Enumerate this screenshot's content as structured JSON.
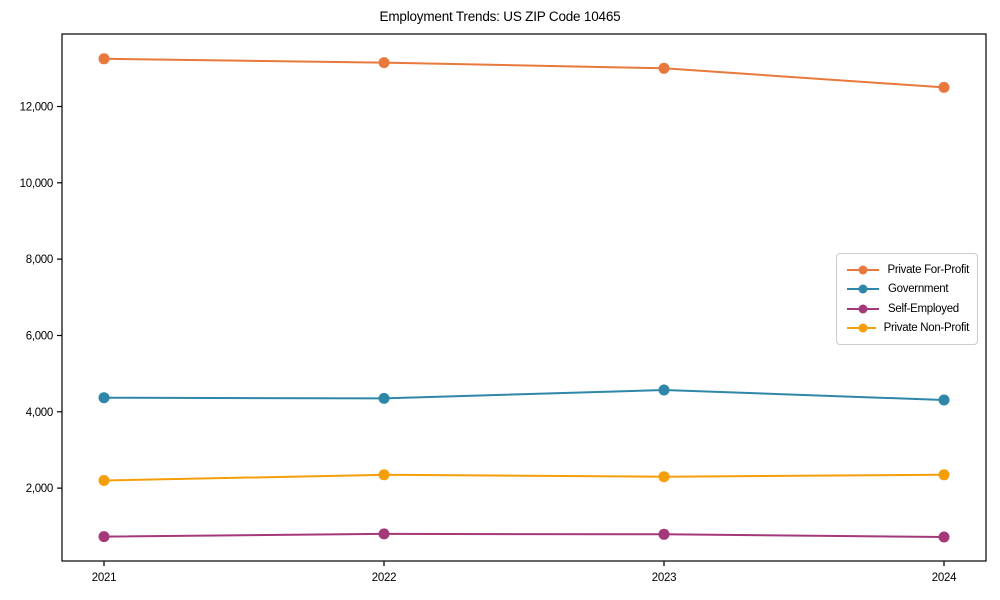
{
  "title": "Employment Trends: US ZIP Code 10465",
  "chart_data": {
    "type": "line",
    "title": "Employment Trends: US ZIP Code 10465",
    "xlabel": "",
    "ylabel": "",
    "x": [
      2021,
      2022,
      2023,
      2024
    ],
    "xtick_labels": [
      "2021",
      "2022",
      "2023",
      "2024"
    ],
    "yticks": [
      2000,
      4000,
      6000,
      8000,
      10000,
      12000
    ],
    "ytick_labels": [
      "2,000",
      "4,000",
      "6,000",
      "8,000",
      "10,000",
      "12,000"
    ],
    "ylim": [
      90,
      13900
    ],
    "grid": false,
    "legend_position": "center-right",
    "series": [
      {
        "name": "Private For-Profit",
        "color": "#E8783C",
        "values": [
          13250,
          13150,
          13000,
          12500
        ]
      },
      {
        "name": "Government",
        "color": "#2E86A8",
        "values": [
          4370,
          4350,
          4570,
          4310
        ]
      },
      {
        "name": "Self-Employed",
        "color": "#A43878",
        "values": [
          730,
          800,
          790,
          720
        ]
      },
      {
        "name": "Private Non-Profit",
        "color": "#F59E0B",
        "values": [
          2200,
          2350,
          2300,
          2350
        ]
      }
    ]
  }
}
